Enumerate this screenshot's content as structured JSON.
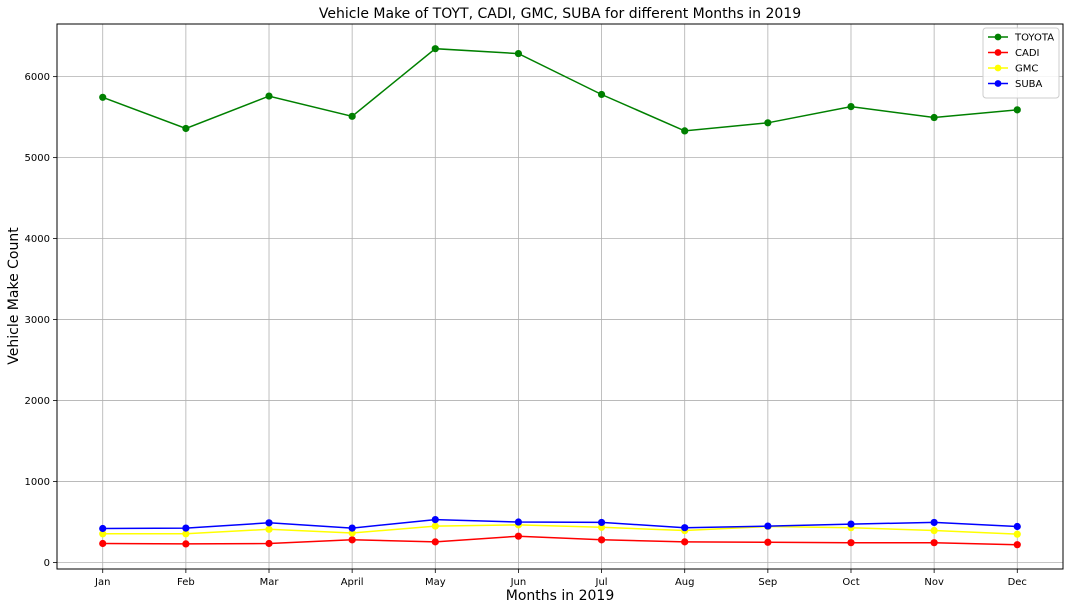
{
  "chart_data": {
    "type": "line",
    "title": "Vehicle Make of TOYT, CADI, GMC, SUBA for different Months in 2019",
    "xlabel": "Months in 2019",
    "ylabel": "Vehicle Make Count",
    "categories": [
      "Jan",
      "Feb",
      "Mar",
      "April",
      "May",
      "Jun",
      "Jul",
      "Aug",
      "Sep",
      "Oct",
      "Nov",
      "Dec"
    ],
    "ylim": [
      -80,
      6650
    ],
    "yticks": [
      0,
      1000,
      2000,
      3000,
      4000,
      5000,
      6000
    ],
    "grid": true,
    "legend_position": "top-right",
    "series": [
      {
        "name": "TOYOTA",
        "color": "#008000",
        "values": [
          5745,
          5360,
          5760,
          5510,
          6345,
          6285,
          5780,
          5330,
          5430,
          5630,
          5495,
          5590
        ]
      },
      {
        "name": "CADI",
        "color": "#ff0000",
        "values": [
          235,
          230,
          235,
          280,
          255,
          325,
          280,
          255,
          250,
          245,
          245,
          220
        ]
      },
      {
        "name": "GMC",
        "color": "#ffff00",
        "values": [
          355,
          355,
          410,
          365,
          450,
          465,
          435,
          395,
          445,
          430,
          395,
          350
        ]
      },
      {
        "name": "SUBA",
        "color": "#0000ff",
        "values": [
          420,
          425,
          490,
          425,
          530,
          500,
          495,
          430,
          450,
          475,
          495,
          445
        ]
      }
    ]
  }
}
